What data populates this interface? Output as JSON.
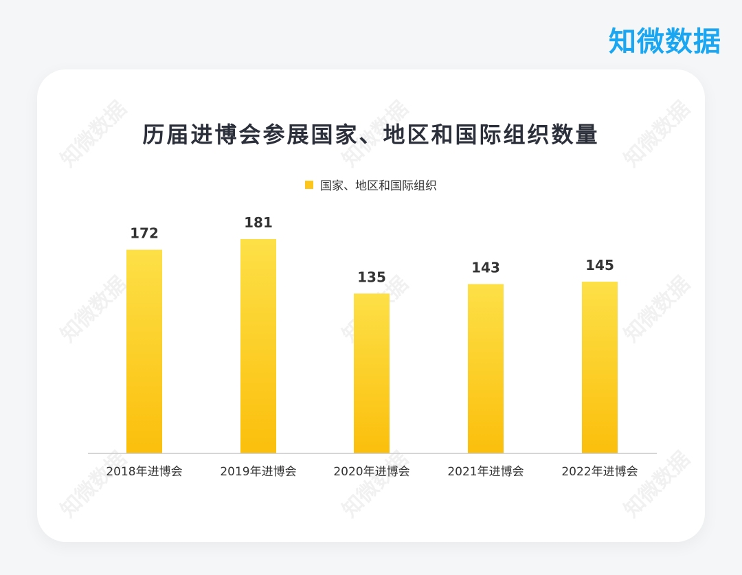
{
  "brand": "知微数据",
  "watermark": "知微数据",
  "chart_data": {
    "type": "bar",
    "title": "历届进博会参展国家、地区和国际组织数量",
    "categories": [
      "2018年进博会",
      "2019年进博会",
      "2020年进博会",
      "2021年进博会",
      "2022年进博会"
    ],
    "series": [
      {
        "name": "国家、地区和国际组织",
        "values": [
          172,
          181,
          135,
          143,
          145
        ]
      }
    ],
    "ylim": [
      0,
      181
    ],
    "grid": false,
    "legend_position": "top-center",
    "colors": {
      "bar_top": "#fde047",
      "bar_bottom": "#fbbf0c",
      "legend": "#fcc61c"
    }
  }
}
